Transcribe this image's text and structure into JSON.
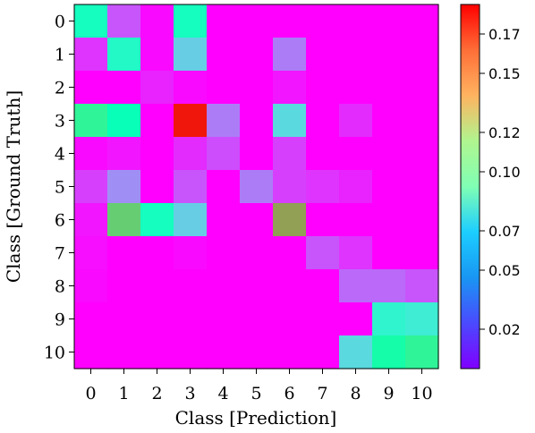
{
  "chart_data": {
    "type": "heatmap",
    "title": "",
    "xlabel": "Class [Prediction]",
    "ylabel": "Class [Ground Truth]",
    "x_categories": [
      "0",
      "1",
      "2",
      "3",
      "4",
      "5",
      "6",
      "7",
      "8",
      "9",
      "10"
    ],
    "y_categories": [
      "0",
      "1",
      "2",
      "3",
      "4",
      "5",
      "6",
      "7",
      "8",
      "9",
      "10"
    ],
    "values": [
      [
        0.085,
        0.02,
        0.002,
        0.085,
        0.0,
        0.0,
        0.0,
        0.0,
        0.0,
        0.0,
        0.0
      ],
      [
        0.012,
        0.08,
        0.002,
        0.055,
        0.0,
        0.0,
        0.03,
        0.0,
        0.0,
        0.0,
        0.0
      ],
      [
        0.0,
        0.0,
        0.008,
        0.002,
        0.0,
        0.0,
        0.005,
        0.0,
        0.0,
        0.0,
        0.0
      ],
      [
        0.11,
        0.09,
        0.0,
        0.18,
        0.03,
        0.0,
        0.06,
        0.0,
        0.01,
        0.0,
        0.0
      ],
      [
        0.002,
        0.005,
        0.0,
        0.01,
        0.018,
        0.0,
        0.015,
        0.0,
        0.0,
        0.0,
        0.0
      ],
      [
        0.015,
        0.035,
        0.0,
        0.02,
        0.0,
        0.03,
        0.015,
        0.012,
        0.008,
        0.0,
        0.0
      ],
      [
        0.005,
        0.13,
        0.085,
        0.055,
        0.0,
        0.0,
        0.145,
        0.0,
        0.0,
        0.0,
        0.0
      ],
      [
        0.003,
        0.0,
        0.0,
        0.002,
        0.0,
        0.0,
        0.0,
        0.02,
        0.012,
        0.0,
        0.0
      ],
      [
        0.002,
        0.0,
        0.0,
        0.0,
        0.0,
        0.0,
        0.0,
        0.0,
        0.025,
        0.025,
        0.02
      ],
      [
        0.0,
        0.0,
        0.0,
        0.0,
        0.0,
        0.0,
        0.0,
        0.0,
        0.0,
        0.075,
        0.07
      ],
      [
        0.0,
        0.0,
        0.0,
        0.0,
        0.0,
        0.0,
        0.0,
        0.0,
        0.06,
        0.1,
        0.11
      ]
    ],
    "colorbar": {
      "colormap": "rainbow",
      "range": [
        0,
        0.185
      ],
      "ticks": [
        0.02,
        0.05,
        0.07,
        0.1,
        0.12,
        0.15,
        0.17
      ],
      "tick_labels": [
        "0.02",
        "0.05",
        "0.07",
        "0.10",
        "0.12",
        "0.15",
        "0.17"
      ]
    }
  }
}
